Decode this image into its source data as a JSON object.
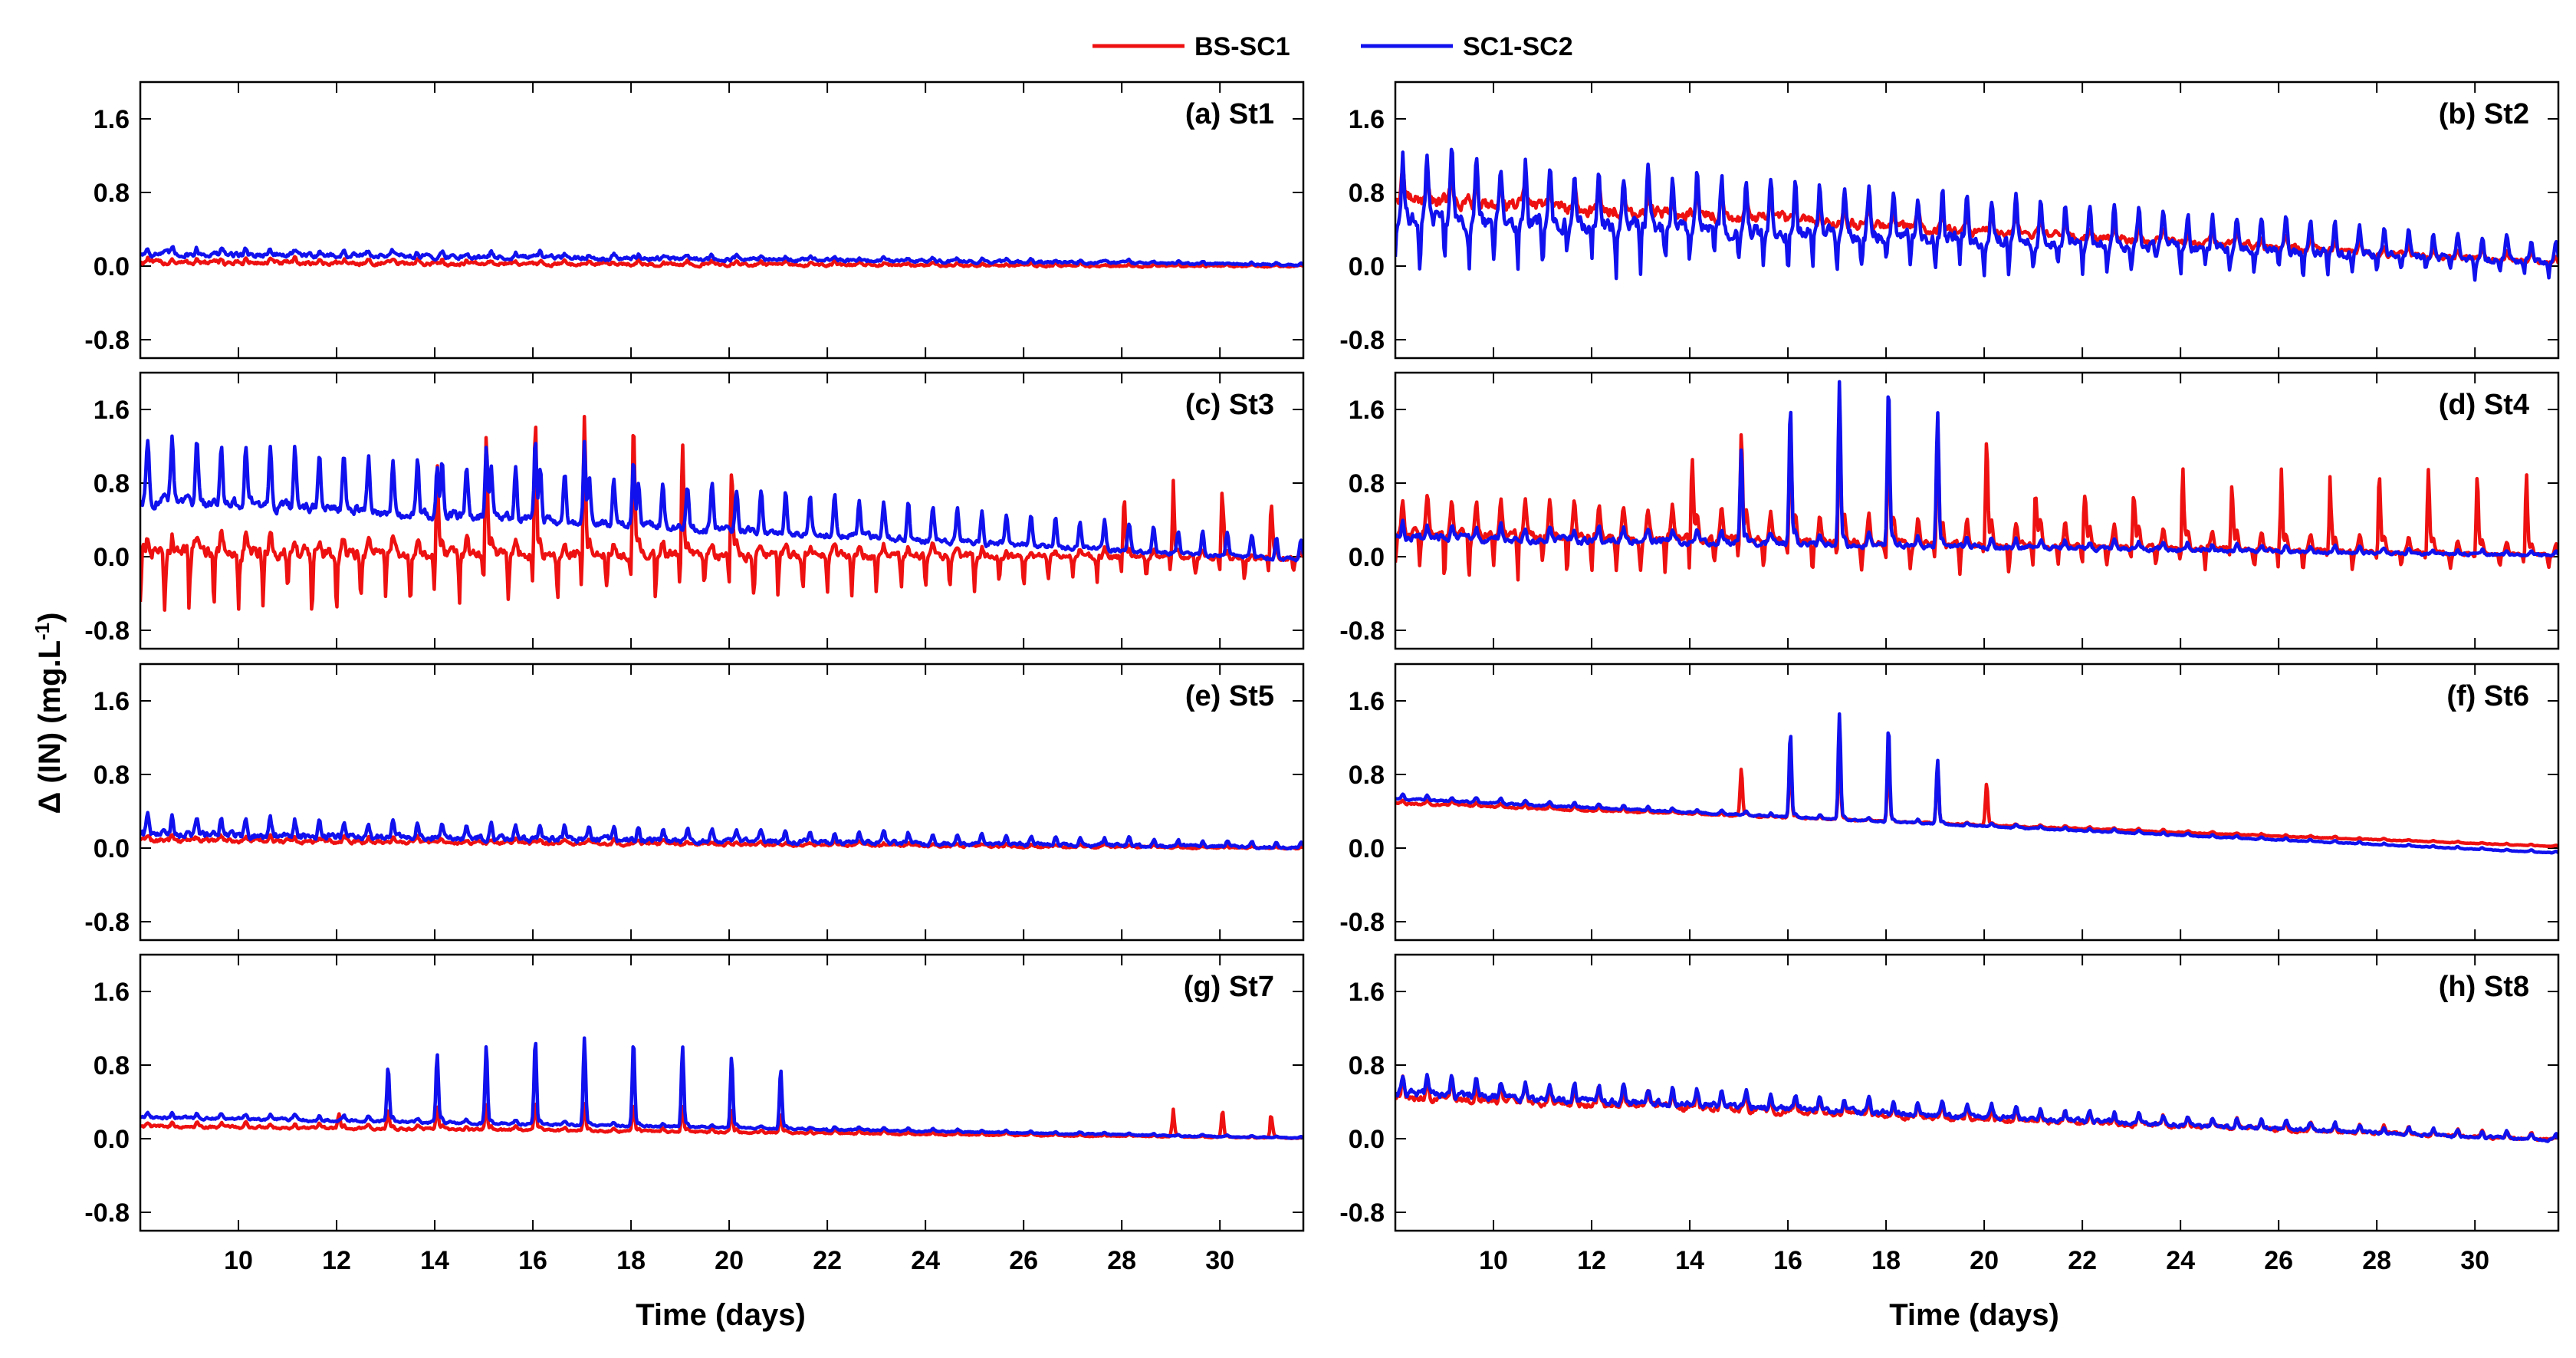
{
  "chart_data": {
    "type": "line",
    "ylabel": "Δ (IN) (mg.L",
    "ylabel_sup": "-1",
    "ylabel_end": ")",
    "xlabel": "Time (days)",
    "xlim": [
      8,
      31.7
    ],
    "ylim": [
      -1.0,
      2.0
    ],
    "xticks": [
      10,
      12,
      14,
      16,
      18,
      20,
      22,
      24,
      26,
      28,
      30
    ],
    "yticks": [
      -0.8,
      0.0,
      0.8,
      1.6
    ],
    "ytick_labels": [
      "-0.8",
      "0.0",
      "0.8",
      "1.6"
    ],
    "legend_position": "top-center",
    "colors": {
      "bs_sc1": "#ee1111",
      "sc1_sc2": "#1111ee"
    },
    "series_names": [
      "BS-SC1",
      "SC1-SC2"
    ],
    "panels": [
      {
        "title": "(a) St1",
        "bs_sc1": {
          "base_start": 0.05,
          "base_end": 0.0,
          "daily_amp": 0.05,
          "noise": 0.05,
          "spike_amp": 0.0,
          "spike_from": 0,
          "spike_to": 0,
          "neg_amp": 0
        },
        "sc1_sc2": {
          "base_start": 0.15,
          "base_end": 0.02,
          "daily_amp": 0.06,
          "noise": 0.06,
          "spike_amp": 0.0,
          "spike_from": 0,
          "spike_to": 0,
          "neg_amp": 0
        }
      },
      {
        "title": "(b) St2",
        "bs_sc1": {
          "base_start": 0.8,
          "base_end": 0.05,
          "daily_amp": 0.25,
          "noise": 0.15,
          "spike_amp": 0.0,
          "spike_from": 0,
          "spike_to": 0,
          "neg_amp": 0
        },
        "sc1_sc2": {
          "base_start": 0.7,
          "base_end": 0.1,
          "daily_amp": 0.7,
          "noise": 0.2,
          "spike_amp": 0.0,
          "spike_from": 0,
          "spike_to": 0,
          "neg_amp": 0.6
        }
      },
      {
        "title": "(c) St3",
        "bs_sc1": {
          "base_start": 0.1,
          "base_end": 0.0,
          "daily_amp": 0.2,
          "noise": 0.15,
          "spike_amp": 1.5,
          "spike_from": 13.5,
          "spike_to": 20.5,
          "neg_amp": 0.8,
          "late_spike_amp": 0.9,
          "late_from": 27.5,
          "late_to": 31.5
        },
        "sc1_sc2": {
          "base_start": 0.8,
          "base_end": 0.02,
          "daily_amp": 0.7,
          "noise": 0.12,
          "spike_amp": 0.9,
          "spike_from": 14,
          "spike_to": 19,
          "neg_amp": 0
        }
      },
      {
        "title": "(d) St4",
        "bs_sc1": {
          "base_start": 0.35,
          "base_end": 0.05,
          "daily_amp": 0.4,
          "noise": 0.1,
          "spike_amp": 1.5,
          "spike_from": 14,
          "spike_to": 21,
          "neg_amp": 0.55,
          "late_spike_amp": 0.9,
          "late_from": 21,
          "late_to": 31.5
        },
        "sc1_sc2": {
          "base_start": 0.25,
          "base_end": 0.02,
          "daily_amp": 0.15,
          "noise": 0.08,
          "spike_amp": 1.8,
          "spike_from": 15,
          "spike_to": 20,
          "neg_amp": 0
        }
      },
      {
        "title": "(e) St5",
        "bs_sc1": {
          "base_start": 0.1,
          "base_end": 0.0,
          "daily_amp": 0.05,
          "noise": 0.05,
          "spike_amp": 0.0,
          "spike_from": 0,
          "spike_to": 0,
          "neg_amp": 0
        },
        "sc1_sc2": {
          "base_start": 0.2,
          "base_end": 0.02,
          "daily_amp": 0.2,
          "noise": 0.08,
          "spike_amp": 0.0,
          "spike_from": 0,
          "spike_to": 0,
          "neg_amp": 0
        }
      },
      {
        "title": "(f) St6",
        "bs_sc1": {
          "base_start": 0.5,
          "base_end": 0.02,
          "daily_amp": 0.04,
          "noise": 0.02,
          "spike_amp": 0.75,
          "spike_from": 14.5,
          "spike_to": 20.3,
          "neg_amp": 0
        },
        "sc1_sc2": {
          "base_start": 0.55,
          "base_end": -0.05,
          "daily_amp": 0.05,
          "noise": 0.02,
          "spike_amp": 1.15,
          "spike_from": 15.3,
          "spike_to": 19.2,
          "neg_amp": 0
        }
      },
      {
        "title": "(g) St7",
        "bs_sc1": {
          "base_start": 0.15,
          "base_end": 0.01,
          "daily_amp": 0.05,
          "noise": 0.03,
          "spike_amp": 0.3,
          "spike_from": 12,
          "spike_to": 22,
          "neg_amp": 0,
          "late_spike_amp": 0.35,
          "late_from": 28.8,
          "late_to": 31.5
        },
        "sc1_sc2": {
          "base_start": 0.25,
          "base_end": 0.01,
          "daily_amp": 0.05,
          "noise": 0.03,
          "spike_amp": 0.95,
          "spike_from": 12.5,
          "spike_to": 22,
          "neg_amp": 0
        }
      },
      {
        "title": "(h) St8",
        "bs_sc1": {
          "base_start": 0.5,
          "base_end": 0.0,
          "daily_amp": 0.2,
          "noise": 0.08,
          "spike_amp": 0.0,
          "spike_from": 0,
          "spike_to": 0,
          "neg_amp": 0
        },
        "sc1_sc2": {
          "base_start": 0.55,
          "base_end": 0.0,
          "daily_amp": 0.2,
          "noise": 0.08,
          "spike_amp": 0.0,
          "spike_from": 0,
          "spike_to": 0,
          "neg_amp": 0
        }
      }
    ]
  }
}
